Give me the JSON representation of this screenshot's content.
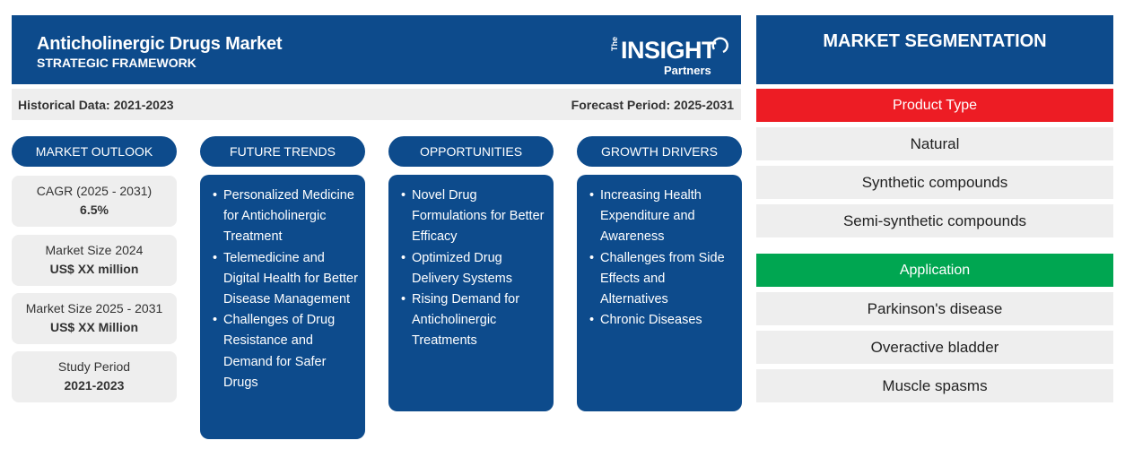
{
  "header": {
    "title": "Anticholinergic Drugs Market",
    "subtitle": "STRATEGIC FRAMEWORK",
    "logo": {
      "the": "The",
      "insight": "INSIGHT",
      "partners": "Partners"
    }
  },
  "periods": {
    "historical": "Historical Data: 2021-2023",
    "forecast": "Forecast Period: 2025-2031"
  },
  "market_outlook": {
    "heading": "MARKET OUTLOOK",
    "stats": [
      {
        "label": "CAGR (2025 - 2031)",
        "value": "6.5%"
      },
      {
        "label": "Market Size 2024",
        "value": "US$ XX million"
      },
      {
        "label": "Market Size 2025 - 2031",
        "value": "US$ XX Million"
      },
      {
        "label": "Study Period",
        "value": "2021-2023"
      }
    ]
  },
  "future_trends": {
    "heading": "FUTURE TRENDS",
    "items": [
      "Personalized Medicine for Anticholinergic Treatment",
      "Telemedicine and Digital Health for Better Disease Management",
      "Challenges of Drug Resistance and Demand for Safer Drugs"
    ]
  },
  "opportunities": {
    "heading": "OPPORTUNITIES",
    "items": [
      "Novel Drug Formulations for Better Efficacy",
      "Optimized Drug Delivery Systems",
      "Rising Demand for Anticholinergic Treatments"
    ]
  },
  "growth_drivers": {
    "heading": "GROWTH DRIVERS",
    "items": [
      "Increasing Health Expenditure and Awareness",
      "Challenges from Side Effects and Alternatives",
      "Chronic Diseases"
    ]
  },
  "segmentation": {
    "heading": "MARKET SEGMENTATION",
    "product_type": {
      "label": "Product Type",
      "color": "#ed1c24",
      "items": [
        "Natural",
        "Synthetic compounds",
        "Semi-synthetic compounds"
      ]
    },
    "application": {
      "label": "Application",
      "color": "#00a651",
      "items": [
        "Parkinson's disease",
        "Overactive bladder",
        "Muscle spasms"
      ]
    }
  },
  "colors": {
    "primary": "#0d4b8c",
    "panel": "#eeeeee"
  }
}
